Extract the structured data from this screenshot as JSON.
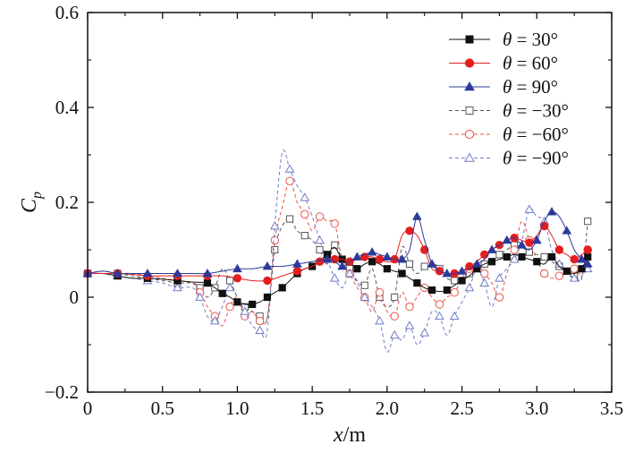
{
  "chart_data": {
    "type": "line",
    "title": "",
    "xlabel_var": "x",
    "xlabel_unit": "/m",
    "ylabel_var": "C",
    "ylabel_sub": "p",
    "xlim": [
      0,
      3.5
    ],
    "ylim": [
      -0.2,
      0.6
    ],
    "xticks": [
      0,
      0.5,
      1.0,
      1.5,
      2.0,
      2.5,
      3.0,
      3.5
    ],
    "xtick_labels": [
      "0",
      "0.5",
      "1.0",
      "1.5",
      "2.0",
      "2.5",
      "3.0",
      "3.5"
    ],
    "yticks": [
      -0.2,
      0,
      0.2,
      0.4,
      0.6
    ],
    "ytick_labels": [
      "−0.2",
      "0",
      "0.2",
      "0.4",
      "0.6"
    ],
    "legend_position": "top-right",
    "series": [
      {
        "name": "θ = 30°",
        "theta_symbol": "θ",
        "label_rest": " = 30°",
        "color": "#111111",
        "marker": "square",
        "filled": true,
        "dash": "solid",
        "x": [
          0,
          0.1,
          0.2,
          0.3,
          0.4,
          0.5,
          0.6,
          0.7,
          0.8,
          0.85,
          0.9,
          0.95,
          1.0,
          1.05,
          1.1,
          1.15,
          1.2,
          1.25,
          1.3,
          1.35,
          1.4,
          1.45,
          1.5,
          1.55,
          1.6,
          1.65,
          1.7,
          1.75,
          1.8,
          1.85,
          1.9,
          1.95,
          2.0,
          2.05,
          2.1,
          2.15,
          2.2,
          2.25,
          2.3,
          2.35,
          2.4,
          2.45,
          2.5,
          2.55,
          2.6,
          2.65,
          2.7,
          2.75,
          2.8,
          2.85,
          2.9,
          2.95,
          3.0,
          3.05,
          3.1,
          3.15,
          3.2,
          3.25,
          3.3,
          3.34
        ],
        "y": [
          0.05,
          0.05,
          0.045,
          0.04,
          0.04,
          0.038,
          0.035,
          0.032,
          0.03,
          0.02,
          0.008,
          0.0,
          -0.01,
          -0.015,
          -0.015,
          -0.01,
          0.0,
          0.01,
          0.02,
          0.035,
          0.05,
          0.06,
          0.065,
          0.075,
          0.09,
          0.105,
          0.08,
          0.075,
          0.06,
          0.07,
          0.075,
          0.07,
          0.06,
          0.055,
          0.05,
          0.04,
          0.03,
          0.02,
          0.015,
          0.012,
          0.015,
          0.025,
          0.035,
          0.045,
          0.06,
          0.07,
          0.075,
          0.08,
          0.085,
          0.09,
          0.085,
          0.08,
          0.075,
          0.07,
          0.085,
          0.065,
          0.055,
          0.05,
          0.06,
          0.085
        ]
      },
      {
        "name": "θ = 60°",
        "theta_symbol": "θ",
        "label_rest": " = 60°",
        "color": "#e41e1e",
        "marker": "circle",
        "filled": true,
        "dash": "solid",
        "x": [
          0,
          0.1,
          0.2,
          0.3,
          0.4,
          0.5,
          0.6,
          0.7,
          0.8,
          0.9,
          1.0,
          1.1,
          1.2,
          1.3,
          1.4,
          1.5,
          1.55,
          1.6,
          1.65,
          1.7,
          1.75,
          1.8,
          1.85,
          1.9,
          1.95,
          2.0,
          2.05,
          2.1,
          2.15,
          2.2,
          2.25,
          2.3,
          2.35,
          2.4,
          2.45,
          2.5,
          2.55,
          2.6,
          2.65,
          2.7,
          2.75,
          2.8,
          2.85,
          2.9,
          2.95,
          3.0,
          3.05,
          3.1,
          3.15,
          3.2,
          3.25,
          3.3,
          3.34
        ],
        "y": [
          0.05,
          0.05,
          0.05,
          0.048,
          0.045,
          0.045,
          0.045,
          0.045,
          0.045,
          0.045,
          0.04,
          0.035,
          0.035,
          0.045,
          0.055,
          0.065,
          0.075,
          0.08,
          0.08,
          0.08,
          0.075,
          0.08,
          0.085,
          0.085,
          0.08,
          0.075,
          0.08,
          0.13,
          0.14,
          0.13,
          0.1,
          0.06,
          0.055,
          0.05,
          0.05,
          0.055,
          0.065,
          0.075,
          0.09,
          0.1,
          0.11,
          0.12,
          0.125,
          0.12,
          0.115,
          0.13,
          0.15,
          0.13,
          0.1,
          0.09,
          0.08,
          0.09,
          0.1
        ]
      },
      {
        "name": "θ = 90°",
        "theta_symbol": "θ",
        "label_rest": " = 90°",
        "color": "#2b3a9a",
        "marker": "triangle",
        "filled": true,
        "dash": "solid",
        "x": [
          0,
          0.1,
          0.2,
          0.3,
          0.4,
          0.5,
          0.6,
          0.7,
          0.8,
          0.9,
          1.0,
          1.1,
          1.2,
          1.3,
          1.4,
          1.5,
          1.6,
          1.65,
          1.7,
          1.75,
          1.8,
          1.85,
          1.9,
          1.95,
          2.0,
          2.05,
          2.1,
          2.15,
          2.2,
          2.25,
          2.3,
          2.35,
          2.4,
          2.45,
          2.5,
          2.55,
          2.6,
          2.65,
          2.7,
          2.75,
          2.8,
          2.85,
          2.9,
          2.95,
          3.0,
          3.05,
          3.1,
          3.15,
          3.2,
          3.25,
          3.3,
          3.34
        ],
        "y": [
          0.05,
          0.055,
          0.05,
          0.05,
          0.05,
          0.05,
          0.05,
          0.05,
          0.05,
          0.055,
          0.06,
          0.06,
          0.065,
          0.065,
          0.07,
          0.075,
          0.08,
          0.075,
          0.065,
          0.075,
          0.085,
          0.09,
          0.095,
          0.09,
          0.085,
          0.08,
          0.08,
          0.1,
          0.17,
          0.12,
          0.07,
          0.055,
          0.05,
          0.05,
          0.055,
          0.06,
          0.07,
          0.08,
          0.1,
          0.11,
          0.12,
          0.125,
          0.11,
          0.1,
          0.12,
          0.16,
          0.18,
          0.17,
          0.14,
          0.1,
          0.08,
          0.07
        ]
      },
      {
        "name": "θ = −30°",
        "theta_symbol": "θ",
        "label_rest": " = −30°",
        "color": "#555555",
        "marker": "square",
        "filled": false,
        "dash": "4,3",
        "x": [
          0,
          0.1,
          0.2,
          0.3,
          0.4,
          0.5,
          0.6,
          0.7,
          0.75,
          0.8,
          0.85,
          0.9,
          0.95,
          1.0,
          1.05,
          1.1,
          1.15,
          1.2,
          1.25,
          1.3,
          1.35,
          1.4,
          1.45,
          1.5,
          1.55,
          1.6,
          1.65,
          1.7,
          1.75,
          1.8,
          1.85,
          1.9,
          1.95,
          2.0,
          2.05,
          2.1,
          2.15,
          2.2,
          2.25,
          2.3,
          2.35,
          2.4,
          2.45,
          2.5,
          2.55,
          2.6,
          2.65,
          2.7,
          2.75,
          2.8,
          2.85,
          2.9,
          2.95,
          3.0,
          3.05,
          3.1,
          3.15,
          3.2,
          3.25,
          3.3,
          3.34
        ],
        "y": [
          0.05,
          0.055,
          0.05,
          0.045,
          0.04,
          0.035,
          0.03,
          0.03,
          0.02,
          0.0,
          0.02,
          0.06,
          0.035,
          0.0,
          -0.02,
          -0.03,
          -0.04,
          -0.045,
          0.1,
          0.15,
          0.165,
          0.14,
          0.13,
          0.12,
          0.1,
          0.07,
          0.11,
          0.08,
          0.06,
          0.035,
          0.025,
          0.06,
          0.0,
          -0.02,
          0.0,
          0.105,
          0.07,
          0.05,
          0.065,
          0.075,
          0.06,
          0.04,
          0.035,
          0.04,
          0.05,
          0.06,
          0.07,
          0.08,
          0.09,
          0.1,
          0.11,
          0.105,
          0.095,
          0.09,
          0.085,
          0.075,
          0.065,
          0.055,
          0.05,
          0.04,
          0.16
        ]
      },
      {
        "name": "θ = −60°",
        "theta_symbol": "θ",
        "label_rest": " = −60°",
        "color": "#e8534a",
        "marker": "circle",
        "filled": false,
        "dash": "4,3",
        "x": [
          0,
          0.1,
          0.2,
          0.3,
          0.4,
          0.5,
          0.6,
          0.7,
          0.75,
          0.8,
          0.85,
          0.9,
          0.95,
          1.0,
          1.05,
          1.1,
          1.15,
          1.2,
          1.25,
          1.3,
          1.35,
          1.4,
          1.45,
          1.5,
          1.55,
          1.6,
          1.65,
          1.7,
          1.75,
          1.8,
          1.85,
          1.9,
          1.95,
          2.0,
          2.05,
          2.1,
          2.15,
          2.2,
          2.25,
          2.3,
          2.35,
          2.4,
          2.45,
          2.5,
          2.55,
          2.6,
          2.65,
          2.7,
          2.75,
          2.8,
          2.85,
          2.9,
          2.95,
          3.0,
          3.05,
          3.1,
          3.15,
          3.2,
          3.25,
          3.3,
          3.34
        ],
        "y": [
          0.05,
          0.05,
          0.05,
          0.05,
          0.045,
          0.04,
          0.035,
          0.03,
          0.01,
          -0.02,
          -0.04,
          -0.06,
          -0.02,
          0.0,
          -0.04,
          -0.03,
          -0.05,
          -0.04,
          0.12,
          0.19,
          0.245,
          0.2,
          0.175,
          0.14,
          0.17,
          0.16,
          0.155,
          0.08,
          0.05,
          0.02,
          0.0,
          -0.03,
          0.01,
          -0.03,
          -0.04,
          0.01,
          -0.02,
          0.0,
          0.02,
          0.0,
          -0.015,
          0.0,
          0.01,
          0.04,
          0.06,
          0.07,
          0.05,
          0.03,
          0.0,
          0.05,
          0.1,
          0.16,
          0.12,
          0.08,
          0.05,
          0.04,
          0.045,
          0.05,
          0.06,
          0.05,
          0.1
        ]
      },
      {
        "name": "θ = −90°",
        "theta_symbol": "θ",
        "label_rest": " = −90°",
        "color": "#6f7cc8",
        "marker": "triangle",
        "filled": false,
        "dash": "4,3",
        "x": [
          0,
          0.1,
          0.2,
          0.3,
          0.4,
          0.5,
          0.6,
          0.7,
          0.75,
          0.8,
          0.85,
          0.9,
          0.95,
          1.0,
          1.05,
          1.1,
          1.15,
          1.2,
          1.25,
          1.3,
          1.35,
          1.4,
          1.45,
          1.5,
          1.55,
          1.6,
          1.65,
          1.7,
          1.75,
          1.8,
          1.85,
          1.9,
          1.95,
          2.0,
          2.05,
          2.1,
          2.15,
          2.2,
          2.25,
          2.3,
          2.35,
          2.4,
          2.45,
          2.5,
          2.55,
          2.6,
          2.65,
          2.7,
          2.75,
          2.8,
          2.85,
          2.9,
          2.95,
          3.0,
          3.05,
          3.1,
          3.15,
          3.2,
          3.25,
          3.3,
          3.34
        ],
        "y": [
          0.05,
          0.05,
          0.045,
          0.04,
          0.035,
          0.03,
          0.02,
          0.02,
          0.0,
          -0.04,
          -0.05,
          -0.02,
          0.02,
          0.0,
          -0.03,
          -0.06,
          -0.07,
          -0.07,
          0.15,
          0.305,
          0.27,
          0.235,
          0.21,
          0.17,
          0.12,
          0.08,
          0.04,
          0.02,
          0.05,
          0.03,
          0.0,
          -0.02,
          -0.05,
          -0.115,
          -0.08,
          -0.09,
          -0.06,
          -0.1,
          -0.075,
          -0.03,
          -0.04,
          -0.08,
          -0.04,
          -0.01,
          0.02,
          0.06,
          0.03,
          -0.02,
          0.04,
          0.06,
          0.08,
          0.12,
          0.185,
          0.17,
          0.16,
          0.1,
          0.07,
          0.05,
          0.04,
          0.045,
          0.06
        ]
      }
    ]
  }
}
